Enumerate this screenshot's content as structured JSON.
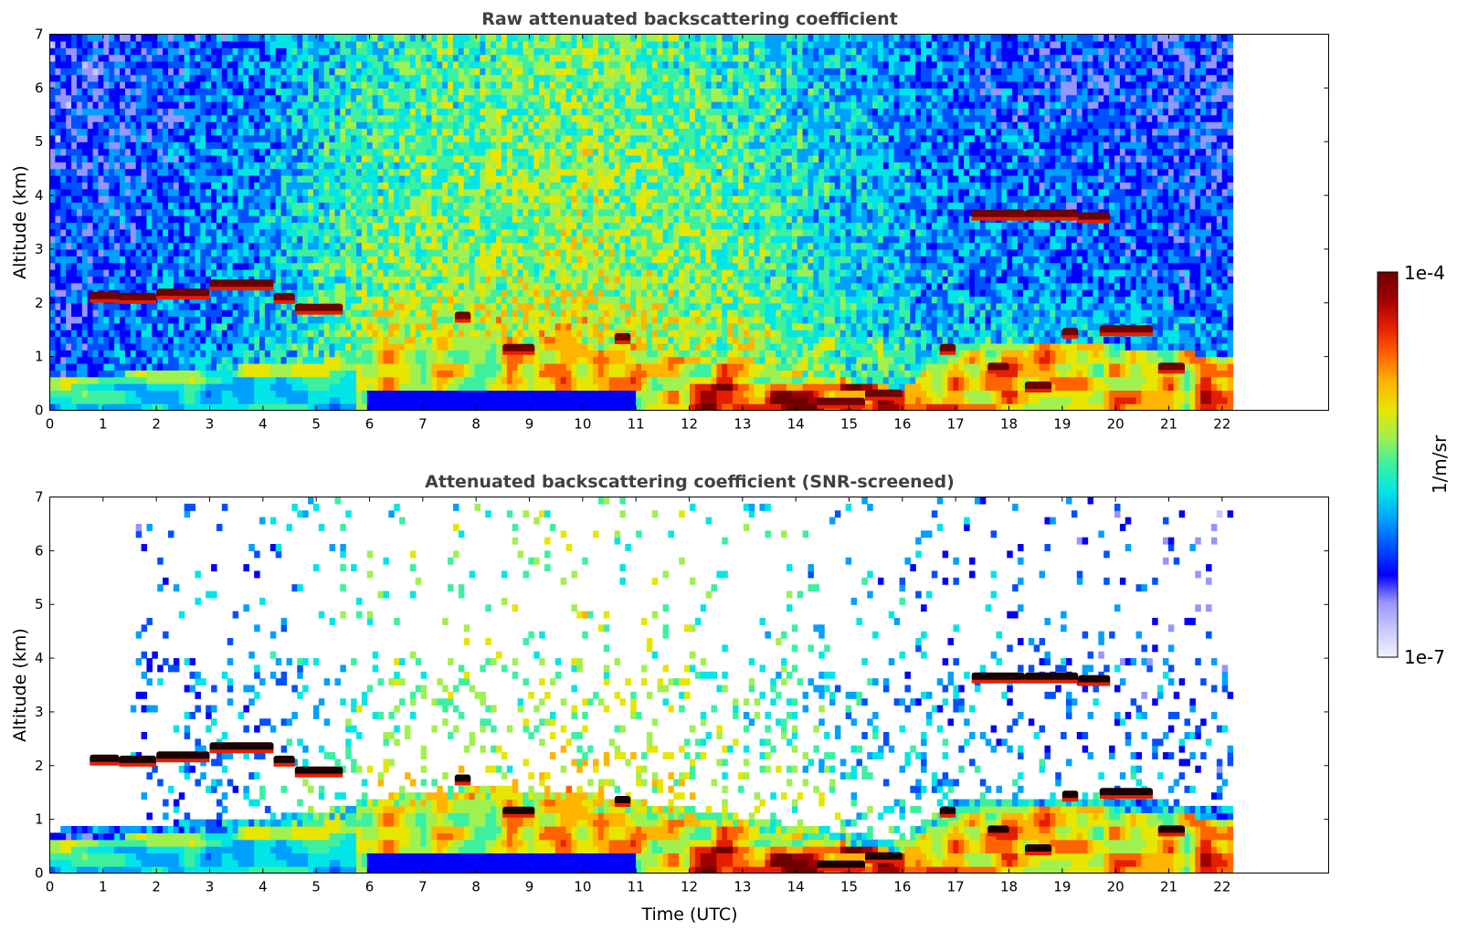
{
  "colormap": [
    "#f2f2ff",
    "#c8c8ff",
    "#9696ff",
    "#0000ff",
    "#0050ff",
    "#00a0ff",
    "#00e6e6",
    "#3cf0a0",
    "#a0f050",
    "#e6e600",
    "#ffb400",
    "#ff6400",
    "#e61e00",
    "#a00000",
    "#6e0000"
  ],
  "colorbar": {
    "max_label": "1e-4",
    "min_label": "1e-7",
    "unit_label": "1/m/sr",
    "scale": "log"
  },
  "chart_data": [
    {
      "type": "heatmap",
      "title": "Raw attenuated backscattering coefficient",
      "ylabel": "Altitude (km)",
      "xlabel": "",
      "xlim": [
        0,
        24
      ],
      "ylim": [
        0,
        7
      ],
      "data_xmax": 22.2,
      "xticks": [
        0,
        1,
        2,
        3,
        4,
        5,
        6,
        7,
        8,
        9,
        10,
        11,
        12,
        13,
        14,
        15,
        16,
        17,
        18,
        19,
        20,
        21,
        22
      ],
      "yticks": [
        0,
        1,
        2,
        3,
        4,
        5,
        6,
        7
      ],
      "screened": false,
      "cloud_layers": [
        {
          "x_start": 0.75,
          "x_end": 1.3,
          "altitude_km": 2.12
        },
        {
          "x_start": 1.3,
          "x_end": 2.0,
          "altitude_km": 2.1
        },
        {
          "x_start": 2.0,
          "x_end": 3.0,
          "altitude_km": 2.18
        },
        {
          "x_start": 3.0,
          "x_end": 4.2,
          "altitude_km": 2.35
        },
        {
          "x_start": 4.2,
          "x_end": 4.6,
          "altitude_km": 2.1
        },
        {
          "x_start": 4.6,
          "x_end": 5.5,
          "altitude_km": 1.9
        },
        {
          "x_start": 7.6,
          "x_end": 7.9,
          "altitude_km": 1.75
        },
        {
          "x_start": 8.5,
          "x_end": 9.1,
          "altitude_km": 1.15
        },
        {
          "x_start": 10.6,
          "x_end": 10.9,
          "altitude_km": 1.35
        },
        {
          "x_start": 14.4,
          "x_end": 15.3,
          "altitude_km": 0.15
        },
        {
          "x_start": 15.3,
          "x_end": 16.0,
          "altitude_km": 0.3
        },
        {
          "x_start": 16.7,
          "x_end": 17.0,
          "altitude_km": 1.15
        },
        {
          "x_start": 17.3,
          "x_end": 18.3,
          "altitude_km": 3.65
        },
        {
          "x_start": 18.3,
          "x_end": 19.3,
          "altitude_km": 3.65
        },
        {
          "x_start": 19.3,
          "x_end": 19.9,
          "altitude_km": 3.6
        },
        {
          "x_start": 17.6,
          "x_end": 18.0,
          "altitude_km": 0.8
        },
        {
          "x_start": 18.3,
          "x_end": 18.8,
          "altitude_km": 0.45
        },
        {
          "x_start": 19.0,
          "x_end": 19.3,
          "altitude_km": 1.45
        },
        {
          "x_start": 19.7,
          "x_end": 20.7,
          "altitude_km": 1.5
        },
        {
          "x_start": 20.8,
          "x_end": 21.3,
          "altitude_km": 0.8
        }
      ]
    },
    {
      "type": "heatmap",
      "title": "Attenuated backscattering coefficient (SNR-screened)",
      "ylabel": "Altitude (km)",
      "xlabel": "Time (UTC)",
      "xlim": [
        0,
        24
      ],
      "ylim": [
        0,
        7
      ],
      "data_xmax": 22.2,
      "xticks": [
        0,
        1,
        2,
        3,
        4,
        5,
        6,
        7,
        8,
        9,
        10,
        11,
        12,
        13,
        14,
        15,
        16,
        17,
        18,
        19,
        20,
        21,
        22
      ],
      "yticks": [
        0,
        1,
        2,
        3,
        4,
        5,
        6,
        7
      ],
      "screened": true,
      "cloud_layers": [
        {
          "x_start": 0.75,
          "x_end": 1.3,
          "altitude_km": 2.12
        },
        {
          "x_start": 1.3,
          "x_end": 2.0,
          "altitude_km": 2.1
        },
        {
          "x_start": 2.0,
          "x_end": 3.0,
          "altitude_km": 2.18
        },
        {
          "x_start": 3.0,
          "x_end": 4.2,
          "altitude_km": 2.35
        },
        {
          "x_start": 4.2,
          "x_end": 4.6,
          "altitude_km": 2.1
        },
        {
          "x_start": 4.6,
          "x_end": 5.5,
          "altitude_km": 1.9
        },
        {
          "x_start": 7.6,
          "x_end": 7.9,
          "altitude_km": 1.75
        },
        {
          "x_start": 8.5,
          "x_end": 9.1,
          "altitude_km": 1.15
        },
        {
          "x_start": 10.6,
          "x_end": 10.9,
          "altitude_km": 1.35
        },
        {
          "x_start": 14.4,
          "x_end": 15.3,
          "altitude_km": 0.15
        },
        {
          "x_start": 15.3,
          "x_end": 16.0,
          "altitude_km": 0.3
        },
        {
          "x_start": 16.7,
          "x_end": 17.0,
          "altitude_km": 1.15
        },
        {
          "x_start": 17.3,
          "x_end": 18.3,
          "altitude_km": 3.65
        },
        {
          "x_start": 18.3,
          "x_end": 19.3,
          "altitude_km": 3.65
        },
        {
          "x_start": 19.3,
          "x_end": 19.9,
          "altitude_km": 3.6
        },
        {
          "x_start": 17.6,
          "x_end": 18.0,
          "altitude_km": 0.8
        },
        {
          "x_start": 18.3,
          "x_end": 18.8,
          "altitude_km": 0.45
        },
        {
          "x_start": 19.0,
          "x_end": 19.3,
          "altitude_km": 1.45
        },
        {
          "x_start": 19.7,
          "x_end": 20.7,
          "altitude_km": 1.5
        },
        {
          "x_start": 20.8,
          "x_end": 21.3,
          "altitude_km": 0.8
        }
      ]
    }
  ]
}
